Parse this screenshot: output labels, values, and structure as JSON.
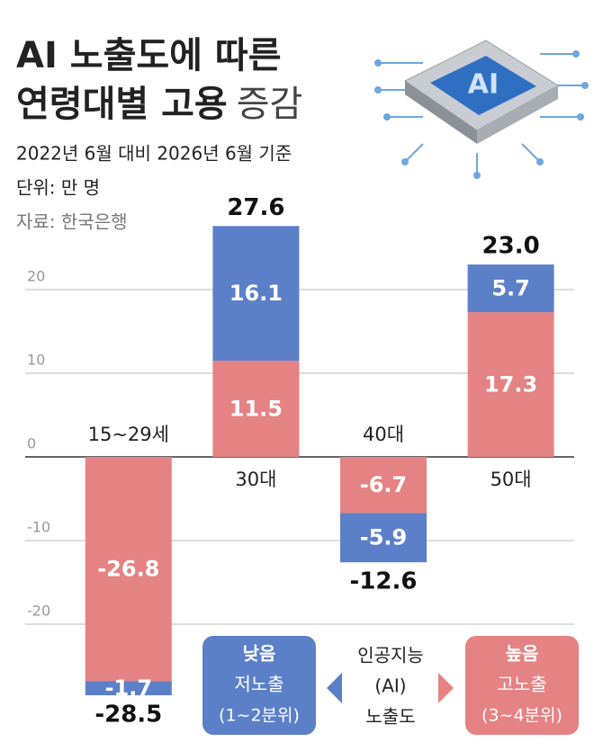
{
  "chart_data": {
    "type": "stacked_bar",
    "title": [
      "AI 노출도에 따른",
      "연령대별 고용",
      "증감"
    ],
    "subtitle": "2022년 6월 대비 2026년 6월 기준",
    "unit": "단위: 만 명",
    "source": "자료: 한국은행",
    "icon_text": "AI",
    "categories": [
      "15~29세",
      "30대",
      "40대",
      "50대"
    ],
    "series": [
      {
        "name": "높음",
        "label": "고노출",
        "range": "(3~4분위)",
        "color": "#e58284",
        "values": [
          -26.8,
          11.5,
          -6.7,
          17.3
        ]
      },
      {
        "name": "낮음",
        "label": "저노출",
        "range": "(1~2분위)",
        "color": "#5b80c8",
        "values": [
          -1.7,
          16.1,
          -5.9,
          5.7
        ]
      }
    ],
    "totals": {
      "values": [
        -28.5,
        27.6,
        -12.6,
        23
      ],
      "value_labels": [
        "-28.5",
        "27.6",
        "-12.6",
        "23.0"
      ]
    },
    "legend_title": [
      "인공지능",
      "(AI)",
      "노출도"
    ],
    "ylim": [
      -30,
      30
    ],
    "yticks": [
      -20,
      -10,
      0,
      10,
      20
    ],
    "grid": true
  }
}
